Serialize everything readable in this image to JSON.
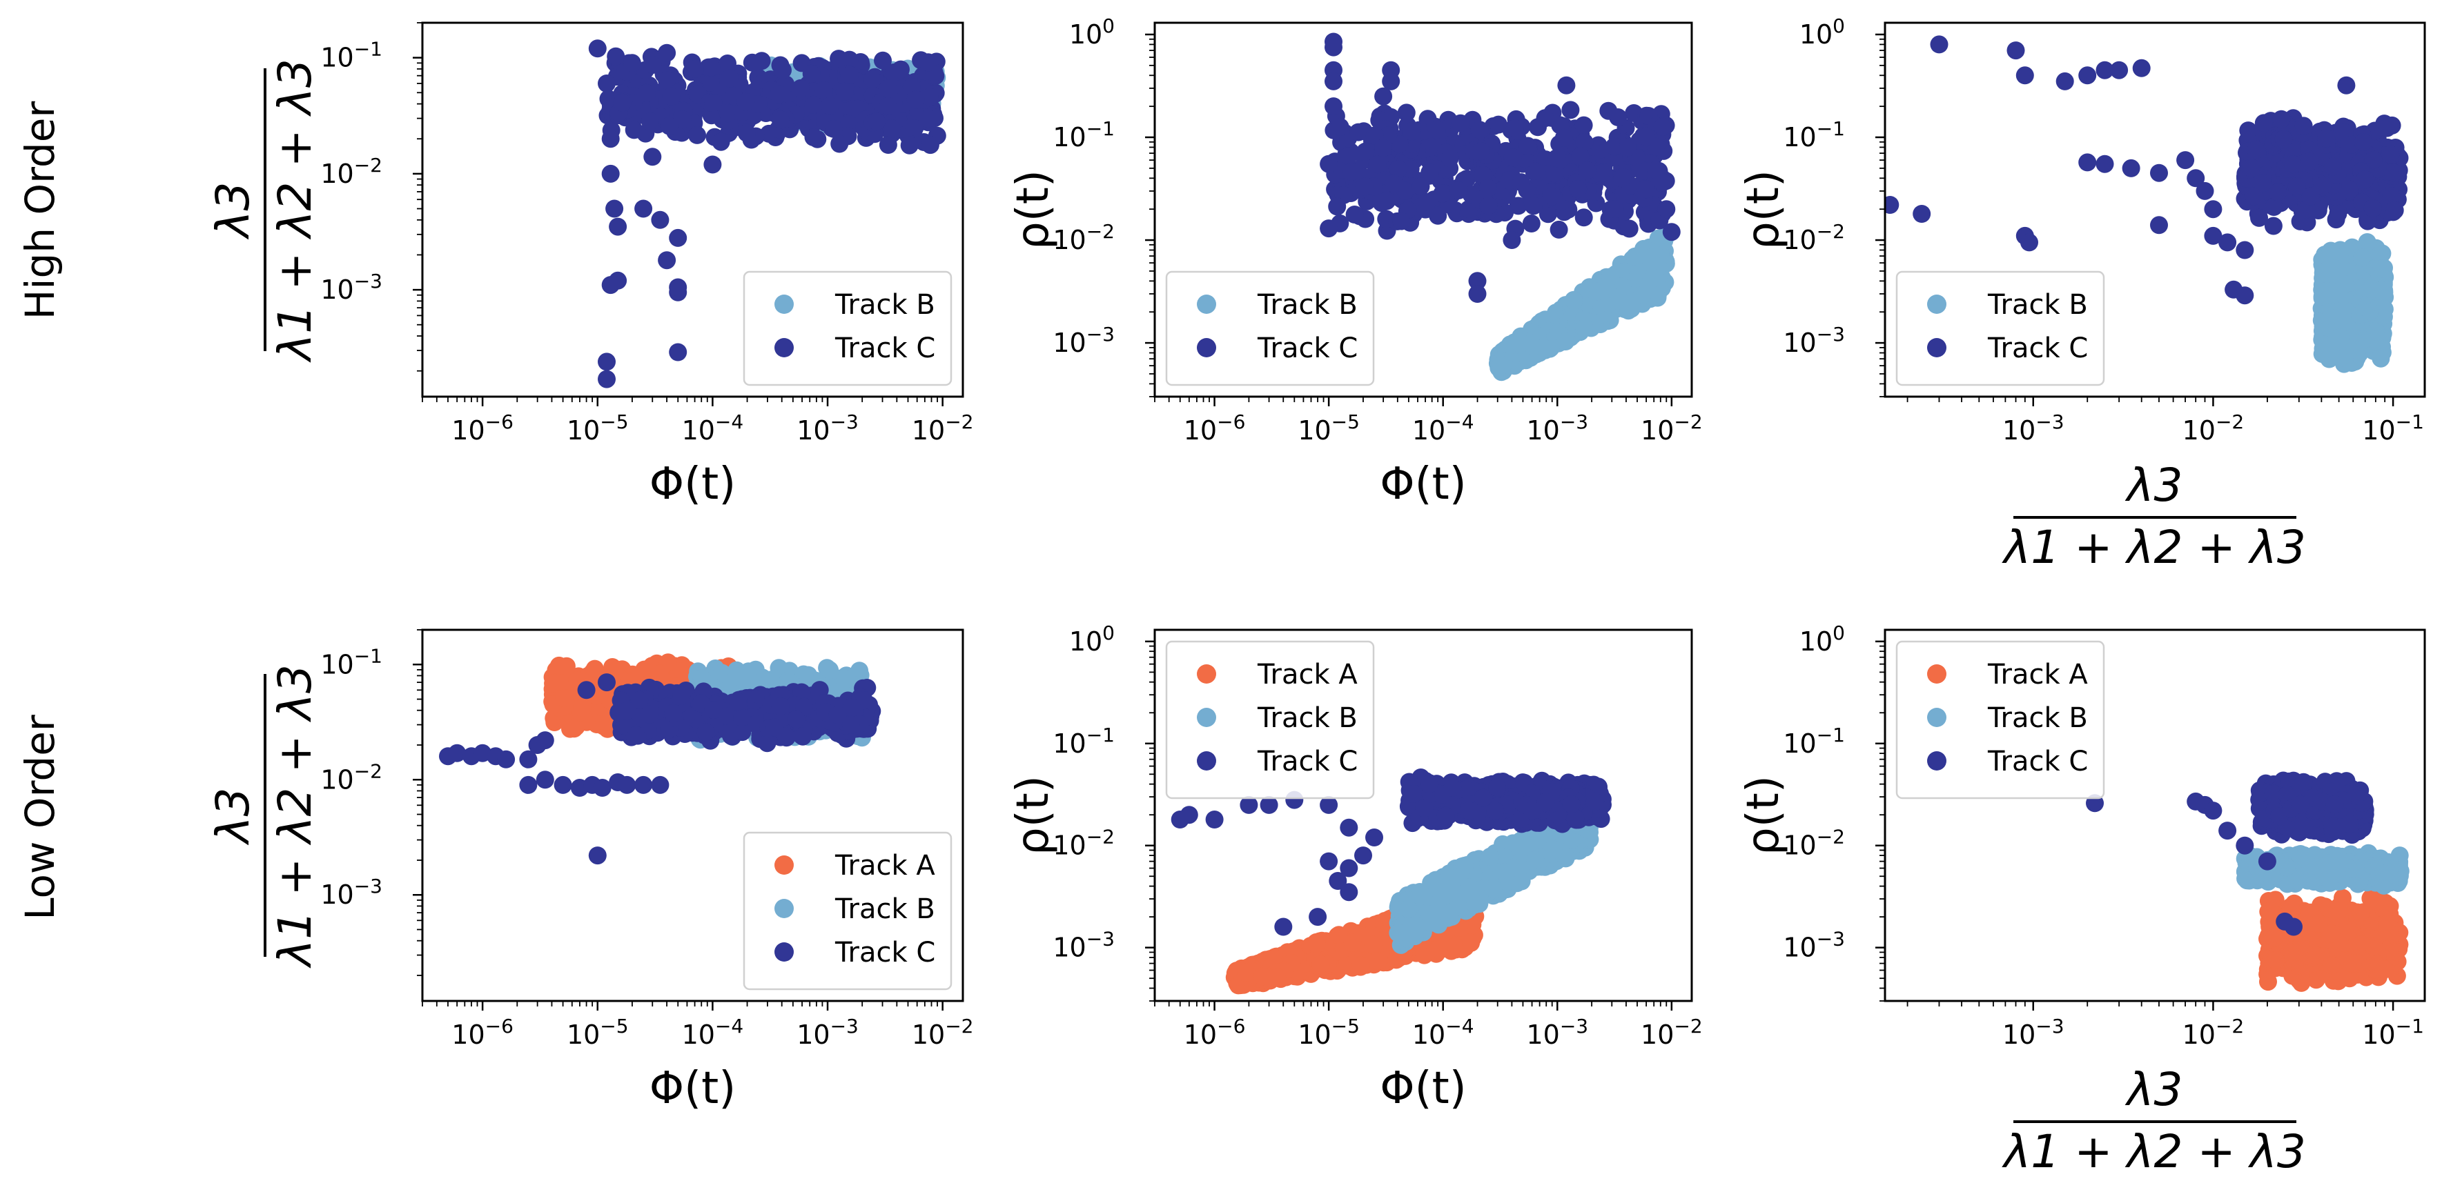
{
  "figure": {
    "row_labels": [
      "High Order",
      "Low Order"
    ],
    "colors": {
      "Track A": "#f26c45",
      "Track B": "#74add1",
      "Track C": "#313695"
    }
  },
  "labels": {
    "phi": "Φ(t)",
    "rho": "ρ(t)",
    "frac_num": "λ3",
    "frac_den": "λ1 + λ2 + λ3"
  },
  "chart_data": [
    {
      "type": "scatter",
      "row": "High Order",
      "x_axis": "phi",
      "y_axis": "frac",
      "xlim": [
        3e-07,
        0.015
      ],
      "ylim": [
        0.00012,
        0.2
      ],
      "xticks": [
        "10^-6",
        "10^-5",
        "10^-4",
        "10^-3",
        "10^-2"
      ],
      "yticks": [
        "10^-3",
        "10^-2",
        "10^-1"
      ],
      "legend_loc": "lower right",
      "series": [
        {
          "name": "Track B",
          "cluster": {
            "x": [
              0.0003,
              0.009
            ],
            "y": [
              0.025,
              0.1
            ]
          }
        },
        {
          "name": "Track C",
          "cluster": {
            "x": [
              1.2e-05,
              0.009
            ],
            "y": [
              0.015,
              0.13
            ]
          },
          "points": [
            [
              1e-05,
              0.12
            ],
            [
              1.2e-05,
              0.06
            ],
            [
              1.3e-05,
              0.02
            ],
            [
              1.3e-05,
              0.01
            ],
            [
              1.4e-05,
              0.005
            ],
            [
              1.5e-05,
              0.0035
            ],
            [
              1.3e-05,
              0.0011
            ],
            [
              1.5e-05,
              0.0012
            ],
            [
              1.2e-05,
              0.00024
            ],
            [
              1.2e-05,
              0.00017
            ],
            [
              2.5e-05,
              0.005
            ],
            [
              3.5e-05,
              0.004
            ],
            [
              4e-05,
              0.0018
            ],
            [
              5e-05,
              0.00095
            ],
            [
              5e-05,
              0.00105
            ],
            [
              5e-05,
              0.00029
            ],
            [
              5e-05,
              0.0028
            ],
            [
              3e-05,
              0.014
            ],
            [
              2e-05,
              0.09
            ],
            [
              4e-05,
              0.11
            ],
            [
              7e-05,
              0.08
            ],
            [
              0.0001,
              0.012
            ]
          ]
        }
      ]
    },
    {
      "type": "scatter",
      "row": "High Order",
      "x_axis": "phi",
      "y_axis": "rho",
      "xlim": [
        3e-07,
        0.015
      ],
      "ylim": [
        0.0003,
        1.3
      ],
      "xticks": [
        "10^-6",
        "10^-5",
        "10^-4",
        "10^-3",
        "10^-2"
      ],
      "yticks": [
        "10^-3",
        "10^-2",
        "10^-1",
        "10^0"
      ],
      "legend_loc": "lower left",
      "series": [
        {
          "name": "Track B",
          "band": {
            "x": [
              0.0003,
              0.009
            ],
            "y_low": [
              0.0005,
              0.003
            ],
            "y_high": [
              0.0008,
              0.012
            ]
          }
        },
        {
          "name": "Track C",
          "cluster": {
            "x": [
              1.1e-05,
              0.009
            ],
            "y": [
              0.01,
              0.3
            ]
          },
          "points": [
            [
              1.1e-05,
              0.85
            ],
            [
              1.1e-05,
              0.75
            ],
            [
              1.1e-05,
              0.45
            ],
            [
              1.1e-05,
              0.35
            ],
            [
              1.1e-05,
              0.2
            ],
            [
              1e-05,
              0.055
            ],
            [
              1e-05,
              0.013
            ],
            [
              3.5e-05,
              0.45
            ],
            [
              3.5e-05,
              0.35
            ],
            [
              3e-05,
              0.25
            ],
            [
              0.0002,
              0.004
            ],
            [
              0.0002,
              0.003
            ],
            [
              0.0012,
              0.32
            ],
            [
              0.009,
              0.02
            ],
            [
              0.01,
              0.012
            ],
            [
              0.0004,
              0.01
            ]
          ]
        }
      ]
    },
    {
      "type": "scatter",
      "row": "High Order",
      "x_axis": "frac",
      "y_axis": "rho",
      "xlim": [
        0.00015,
        0.15
      ],
      "ylim": [
        0.0003,
        1.3
      ],
      "xticks": [
        "10^-3",
        "10^-2",
        "10^-1"
      ],
      "yticks": [
        "10^-3",
        "10^-2",
        "10^-1",
        "10^0"
      ],
      "legend_loc": "lower left",
      "series": [
        {
          "name": "Track B",
          "cluster": {
            "x": [
              0.04,
              0.09
            ],
            "y": [
              0.0005,
              0.012
            ]
          }
        },
        {
          "name": "Track C",
          "cluster": {
            "x": [
              0.015,
              0.11
            ],
            "y": [
              0.012,
              0.2
            ]
          },
          "points": [
            [
              0.00016,
              0.022
            ],
            [
              0.00024,
              0.018
            ],
            [
              0.0003,
              0.8
            ],
            [
              0.0008,
              0.7
            ],
            [
              0.0009,
              0.4
            ],
            [
              0.0009,
              0.011
            ],
            [
              0.00095,
              0.0095
            ],
            [
              0.0015,
              0.35
            ],
            [
              0.002,
              0.4
            ],
            [
              0.0025,
              0.45
            ],
            [
              0.003,
              0.45
            ],
            [
              0.004,
              0.47
            ],
            [
              0.002,
              0.057
            ],
            [
              0.0025,
              0.055
            ],
            [
              0.0035,
              0.05
            ],
            [
              0.005,
              0.045
            ],
            [
              0.007,
              0.06
            ],
            [
              0.008,
              0.04
            ],
            [
              0.009,
              0.03
            ],
            [
              0.01,
              0.02
            ],
            [
              0.005,
              0.014
            ],
            [
              0.01,
              0.011
            ],
            [
              0.012,
              0.0095
            ],
            [
              0.015,
              0.008
            ],
            [
              0.013,
              0.0033
            ],
            [
              0.015,
              0.0029
            ],
            [
              0.055,
              0.32
            ]
          ]
        }
      ]
    },
    {
      "type": "scatter",
      "row": "Low Order",
      "x_axis": "phi",
      "y_axis": "frac",
      "xlim": [
        3e-07,
        0.015
      ],
      "ylim": [
        0.00012,
        0.2
      ],
      "xticks": [
        "10^-6",
        "10^-5",
        "10^-4",
        "10^-3",
        "10^-2"
      ],
      "yticks": [
        "10^-3",
        "10^-2",
        "10^-1"
      ],
      "legend_loc": "lower right",
      "series": [
        {
          "name": "Track A",
          "cluster": {
            "x": [
              4e-06,
              0.00015
            ],
            "y": [
              0.025,
              0.12
            ]
          }
        },
        {
          "name": "Track B",
          "cluster": {
            "x": [
              7e-05,
              0.002
            ],
            "y": [
              0.02,
              0.11
            ]
          }
        },
        {
          "name": "Track C",
          "cluster": {
            "x": [
              1.5e-05,
              0.0025
            ],
            "y": [
              0.02,
              0.07
            ]
          },
          "points": [
            [
              5e-07,
              0.016
            ],
            [
              6e-07,
              0.017
            ],
            [
              8e-07,
              0.016
            ],
            [
              1e-06,
              0.017
            ],
            [
              1.3e-06,
              0.016
            ],
            [
              1.6e-06,
              0.015
            ],
            [
              2.5e-06,
              0.015
            ],
            [
              3e-06,
              0.02
            ],
            [
              3.5e-06,
              0.022
            ],
            [
              2.5e-06,
              0.009
            ],
            [
              3.5e-06,
              0.01
            ],
            [
              5e-06,
              0.009
            ],
            [
              7e-06,
              0.0085
            ],
            [
              9e-06,
              0.009
            ],
            [
              1.1e-05,
              0.0085
            ],
            [
              1.5e-05,
              0.0095
            ],
            [
              1.8e-05,
              0.009
            ],
            [
              2.5e-05,
              0.009
            ],
            [
              3.5e-05,
              0.009
            ],
            [
              1e-05,
              0.0022
            ],
            [
              8e-06,
              0.06
            ],
            [
              1.2e-05,
              0.07
            ]
          ]
        }
      ]
    },
    {
      "type": "scatter",
      "row": "Low Order",
      "x_axis": "phi",
      "y_axis": "rho",
      "xlim": [
        3e-07,
        0.015
      ],
      "ylim": [
        0.0003,
        1.3
      ],
      "xticks": [
        "10^-6",
        "10^-5",
        "10^-4",
        "10^-3",
        "10^-2"
      ],
      "yticks": [
        "10^-3",
        "10^-2",
        "10^-1",
        "10^0"
      ],
      "legend_loc": "upper left",
      "series": [
        {
          "name": "Track A",
          "band": {
            "x": [
              1.5e-06,
              0.0002
            ],
            "y_low": [
              0.0004,
              0.001
            ],
            "y_high": [
              0.0006,
              0.004
            ]
          }
        },
        {
          "name": "Track B",
          "band": {
            "x": [
              4e-05,
              0.002
            ],
            "y_low": [
              0.001,
              0.01
            ],
            "y_high": [
              0.003,
              0.03
            ]
          }
        },
        {
          "name": "Track C",
          "cluster": {
            "x": [
              5e-05,
              0.0025
            ],
            "y": [
              0.015,
              0.05
            ]
          },
          "points": [
            [
              5e-07,
              0.018
            ],
            [
              6e-07,
              0.02
            ],
            [
              1e-06,
              0.018
            ],
            [
              2e-06,
              0.025
            ],
            [
              3e-06,
              0.025
            ],
            [
              5e-06,
              0.028
            ],
            [
              1e-05,
              0.025
            ],
            [
              1.5e-05,
              0.015
            ],
            [
              1e-05,
              0.007
            ],
            [
              1.5e-05,
              0.006
            ],
            [
              2e-05,
              0.008
            ],
            [
              1.2e-05,
              0.0045
            ],
            [
              1.5e-05,
              0.0035
            ],
            [
              8e-06,
              0.002
            ],
            [
              4e-06,
              0.0016
            ],
            [
              2.5e-05,
              0.012
            ]
          ]
        }
      ]
    },
    {
      "type": "scatter",
      "row": "Low Order",
      "x_axis": "frac",
      "y_axis": "rho",
      "xlim": [
        0.00015,
        0.15
      ],
      "ylim": [
        0.0003,
        1.3
      ],
      "xticks": [
        "10^-3",
        "10^-2",
        "10^-1"
      ],
      "yticks": [
        "10^-3",
        "10^-2",
        "10^-1",
        "10^0"
      ],
      "legend_loc": "upper left",
      "series": [
        {
          "name": "Track A",
          "cluster": {
            "x": [
              0.02,
              0.11
            ],
            "y": [
              0.0004,
              0.004
            ]
          }
        },
        {
          "name": "Track B",
          "cluster": {
            "x": [
              0.015,
              0.11
            ],
            "y": [
              0.004,
              0.009
            ]
          }
        },
        {
          "name": "Track C",
          "cluster": {
            "x": [
              0.018,
              0.07
            ],
            "y": [
              0.012,
              0.05
            ]
          },
          "points": [
            [
              0.0022,
              0.026
            ],
            [
              0.008,
              0.027
            ],
            [
              0.009,
              0.025
            ],
            [
              0.01,
              0.022
            ],
            [
              0.012,
              0.014
            ],
            [
              0.015,
              0.01
            ],
            [
              0.02,
              0.007
            ],
            [
              0.025,
              0.0018
            ],
            [
              0.028,
              0.0016
            ]
          ]
        }
      ]
    }
  ]
}
